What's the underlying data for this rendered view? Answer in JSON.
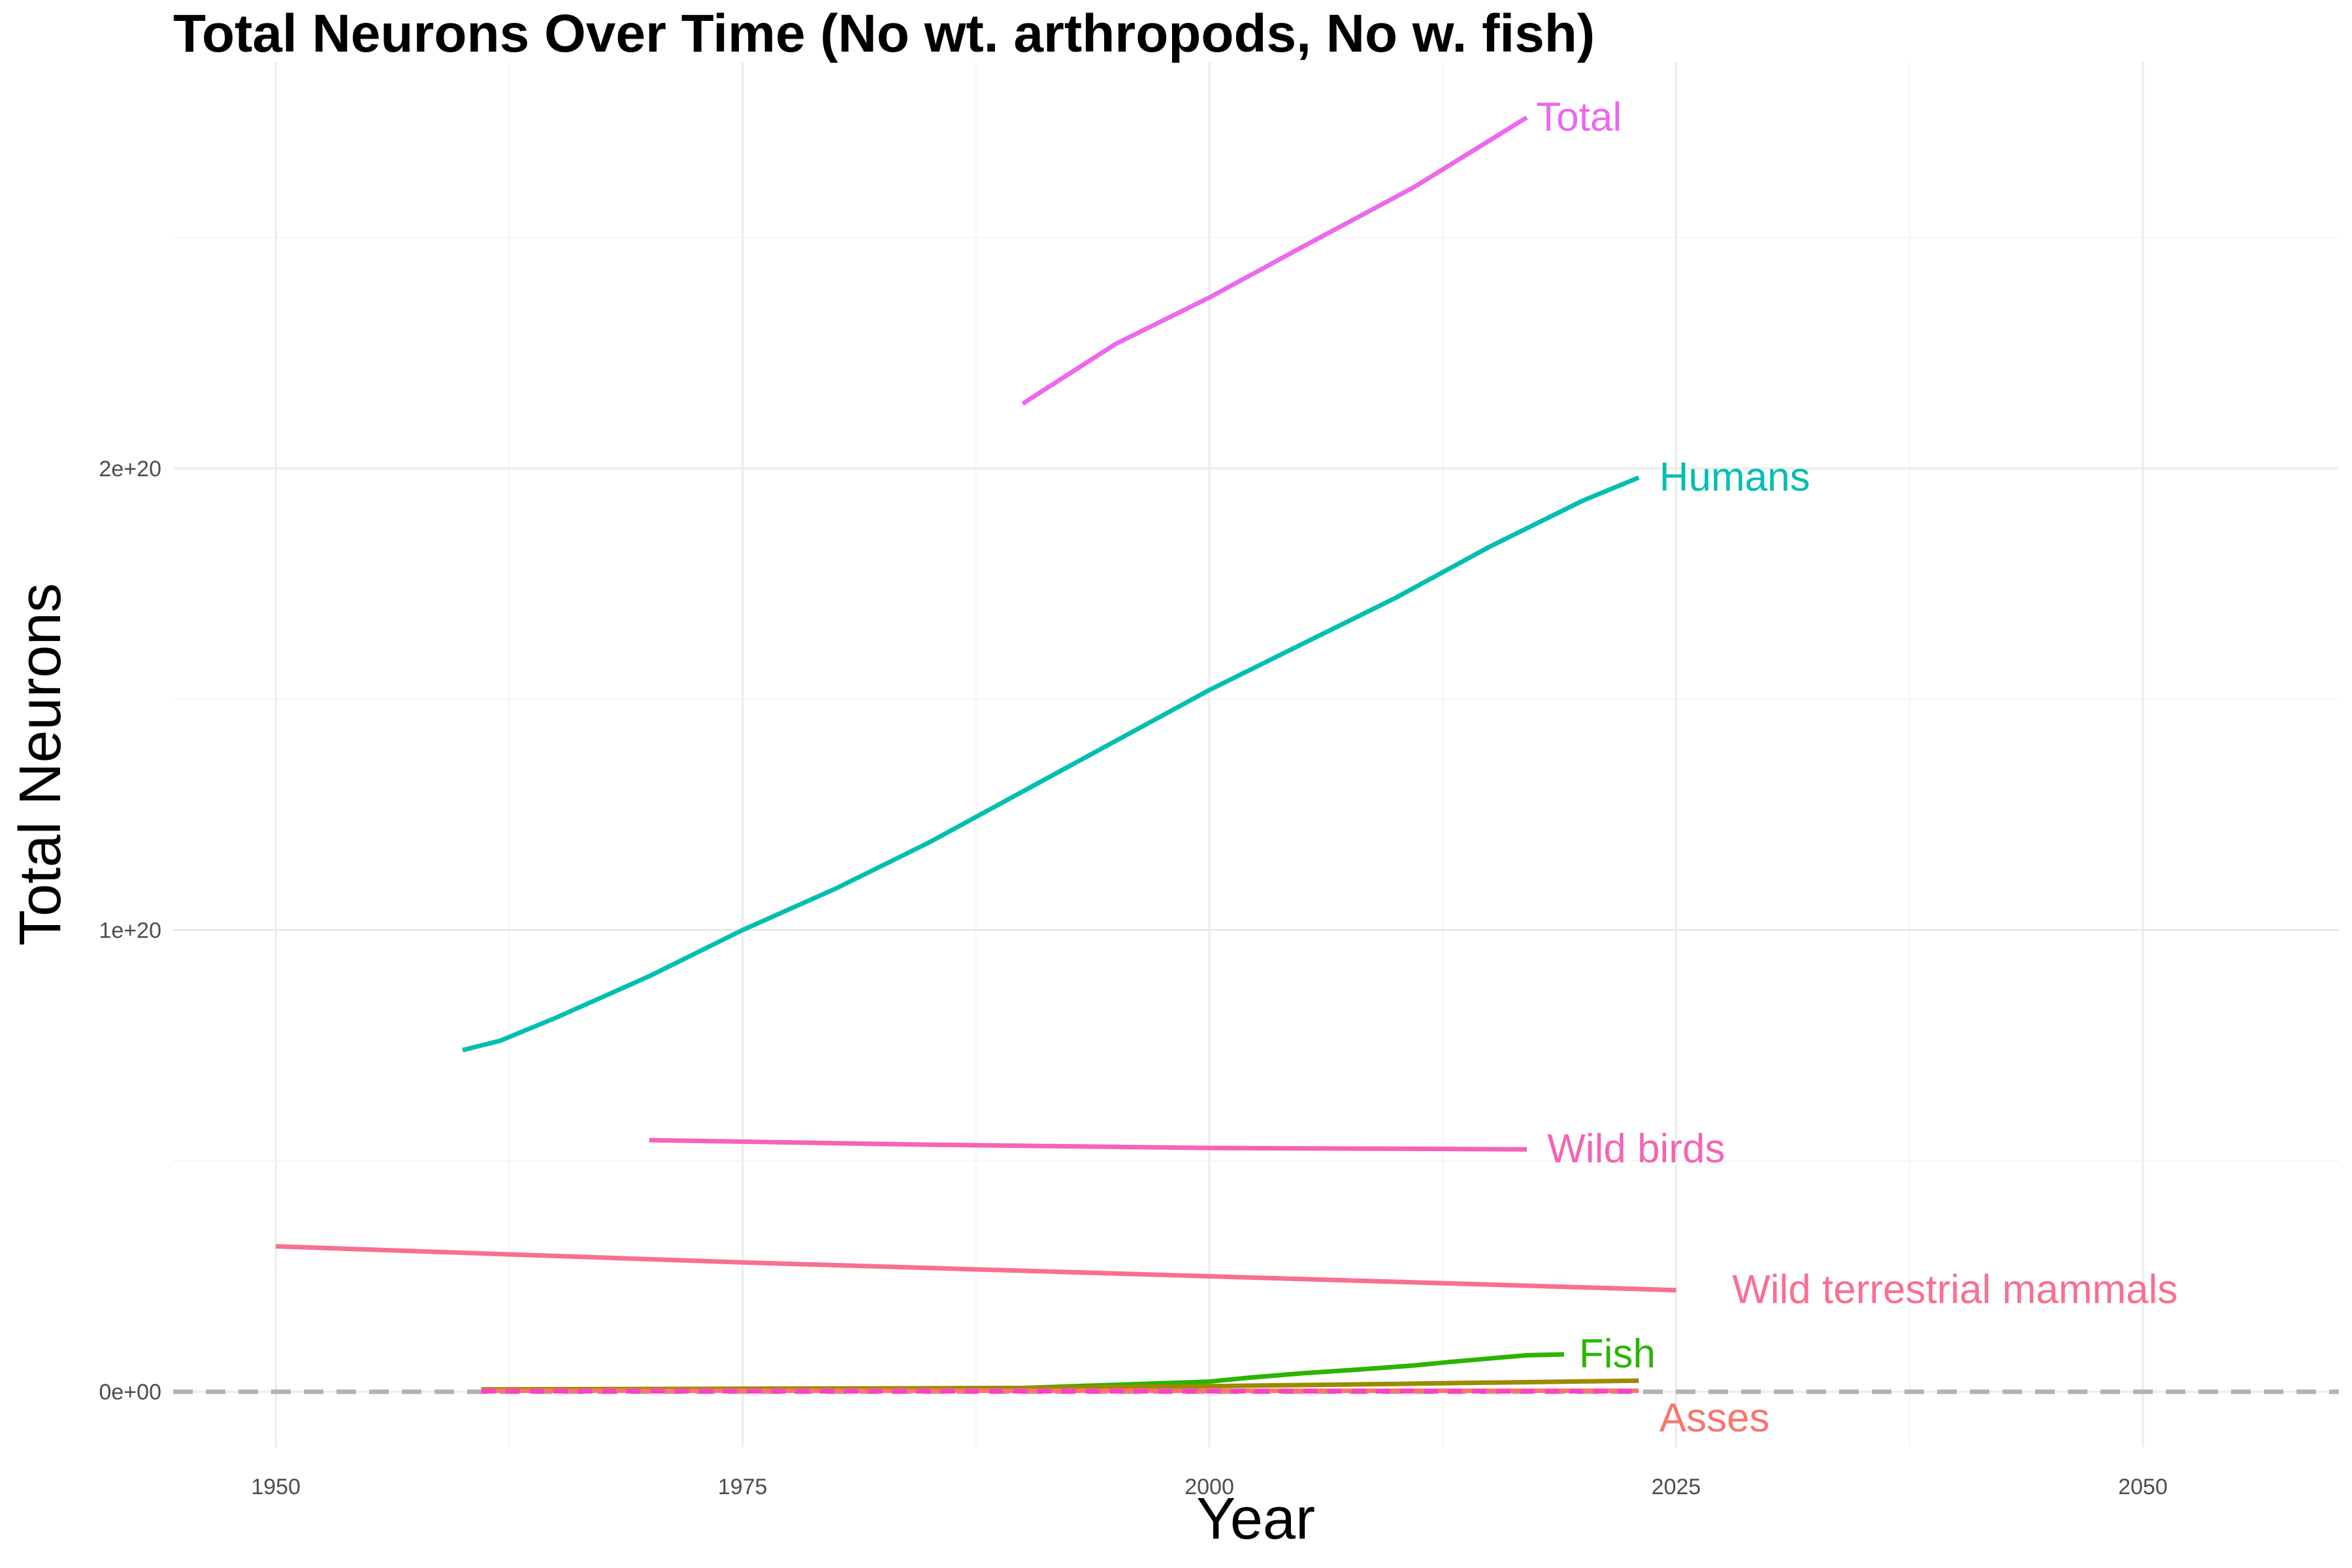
{
  "chart_data": {
    "type": "line",
    "title": "Total Neurons Over Time (No wt. arthropods, No w. fish)",
    "xlabel": "Year",
    "ylabel": "Total Neurons",
    "xlim": [
      1944.5,
      2060.5
    ],
    "ylim": [
      -1.2e+19,
      2.88e+20
    ],
    "x_ticks": [
      1950,
      1975,
      2000,
      2025,
      2050
    ],
    "x_tick_labels": [
      "1950",
      "1975",
      "2000",
      "2025",
      "2050"
    ],
    "y_ticks": [
      0,
      1e+20,
      2e+20
    ],
    "y_tick_labels": [
      "0e+00",
      "1e+20",
      "2e+20"
    ],
    "grid": true,
    "reference_line": {
      "y": 0,
      "style": "dashed",
      "color": "#b3b3b3"
    },
    "series": [
      {
        "name": "Total",
        "color": "#ed68ed",
        "label_year": 2017.5,
        "x": [
          1990,
          1995,
          2000,
          2005,
          2011,
          2017
        ],
        "y": [
          2.14e+20,
          2.27e+20,
          2.37e+20,
          2.48e+20,
          2.61e+20,
          2.76e+20
        ]
      },
      {
        "name": "Humans",
        "color": "#00bfb2",
        "x": [
          1960,
          1962,
          1965,
          1970,
          1975,
          1980,
          1985,
          1990,
          1995,
          2000,
          2005,
          2010,
          2015,
          2020,
          2023
        ],
        "y": [
          7.4e+19,
          7.6e+19,
          8.1e+19,
          9e+19,
          1e+20,
          1.09e+20,
          1.19e+20,
          1.3e+20,
          1.41e+20,
          1.52e+20,
          1.62e+20,
          1.72e+20,
          1.83e+20,
          1.93e+20,
          1.98e+20
        ]
      },
      {
        "name": "Wild birds",
        "color": "#f564b4",
        "x": [
          1970,
          1985,
          2000,
          2017
        ],
        "y": [
          5.45e+19,
          5.35e+19,
          5.28e+19,
          5.25e+19
        ]
      },
      {
        "name": "Wild terrestrial mammals",
        "color": "#f8708f",
        "label_year": 2028,
        "x": [
          1950,
          1975,
          2000,
          2025
        ],
        "y": [
          3.15e+19,
          2.8e+19,
          2.5e+19,
          2.2e+19
        ]
      },
      {
        "name": "Fish",
        "color": "#2ab500",
        "label_year": 2019.8,
        "x": [
          1961,
          1990,
          1995,
          2000,
          2002,
          2005,
          2008,
          2011,
          2013,
          2015,
          2017,
          2019
        ],
        "y": [
          3e+17,
          8e+17,
          1.5e+18,
          2.2e+18,
          3e+18,
          4e+18,
          4.8e+18,
          5.7e+18,
          6.5e+18,
          7.2e+18,
          7.9e+18,
          8.1e+18
        ]
      },
      {
        "name": "",
        "color": "#9c8a00",
        "x": [
          1961,
          1990,
          2000,
          2010,
          2023
        ],
        "y": [
          5e+17,
          8e+17,
          1.2e+18,
          1.7e+18,
          2.4e+18
        ]
      },
      {
        "name": "Asses",
        "color": "#f8766d",
        "label_dy": -6e+18,
        "x": [
          1961,
          2023
        ],
        "y": [
          2e+17,
          2e+17
        ]
      },
      {
        "name": "",
        "color": "#ff3ec9",
        "dash": "22,15",
        "x": [
          1961,
          2023
        ],
        "y": [
          1e+17,
          1e+17
        ]
      }
    ]
  }
}
